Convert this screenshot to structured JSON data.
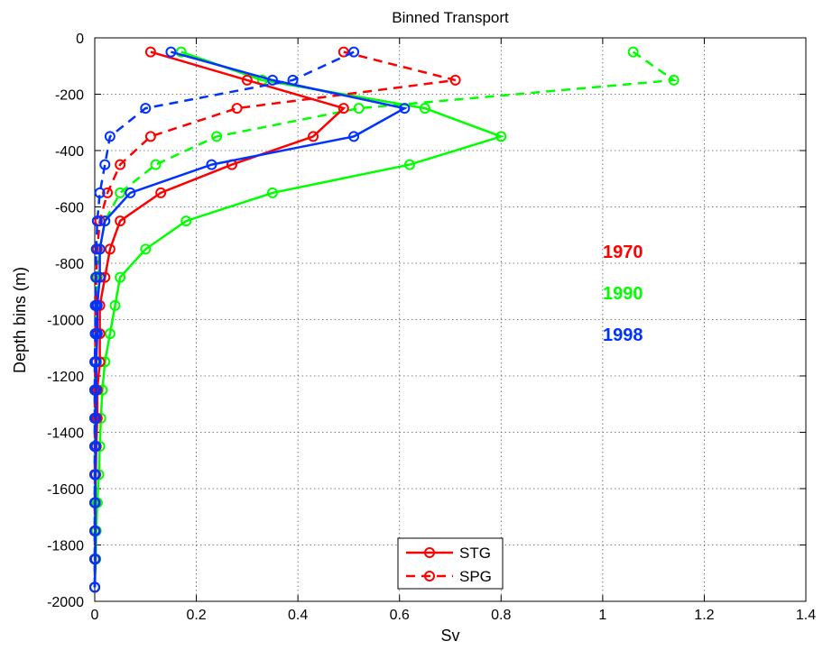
{
  "chart_data": {
    "type": "line",
    "title": "Binned Transport",
    "xlabel": "Sv",
    "ylabel": "Depth bins (m)",
    "xlim": [
      0,
      1.4
    ],
    "ylim": [
      -2000,
      0
    ],
    "xticks": [
      0,
      0.2,
      0.4,
      0.6,
      0.8,
      1,
      1.2,
      1.4
    ],
    "xtick_labels": [
      "0",
      "0.2",
      "0.4",
      "0.6",
      "0.8",
      "1",
      "1.2",
      "1.4"
    ],
    "yticks": [
      0,
      -200,
      -400,
      -600,
      -800,
      -1000,
      -1200,
      -1400,
      -1600,
      -1800,
      -2000
    ],
    "ytick_labels": [
      "0",
      "-200",
      "-400",
      "-600",
      "-800",
      "-1000",
      "-1200",
      "-1400",
      "-1600",
      "-1800",
      "-2000"
    ],
    "grid": true,
    "legend": {
      "placement": "bottom-center",
      "entries": [
        {
          "label": "STG",
          "style": "solid"
        },
        {
          "label": "SPG",
          "style": "dashed"
        }
      ]
    },
    "year_labels": [
      {
        "text": "1970",
        "color": "#ff0000"
      },
      {
        "text": "1990",
        "color": "#00ff00"
      },
      {
        "text": "1998",
        "color": "#0033ff"
      }
    ],
    "depth": [
      -50,
      -150,
      -250,
      -350,
      -450,
      -550,
      -650,
      -750,
      -850,
      -950,
      -1050,
      -1150,
      -1250,
      -1350,
      -1450,
      -1550,
      -1650,
      -1750,
      -1850,
      -1950
    ],
    "series": [
      {
        "year": "1970",
        "gyre": "STG",
        "style": "solid",
        "color": "#ff0000",
        "values": [
          0.11,
          0.3,
          0.49,
          0.43,
          0.27,
          0.13,
          0.05,
          0.03,
          0.02,
          0.01,
          0.01,
          0.01,
          0.005,
          0.005,
          0.003,
          0.002,
          0.001,
          0.001,
          0.001,
          0.0
        ]
      },
      {
        "year": "1970",
        "gyre": "SPG",
        "style": "dashed",
        "color": "#ff0000",
        "values": [
          0.49,
          0.71,
          0.28,
          0.11,
          0.05,
          0.025,
          0.01,
          0.005,
          0.003,
          0.002,
          0.001,
          0.001,
          0.0,
          0.0,
          0.0,
          0.0,
          0.0,
          0.0,
          0.0,
          0.0
        ]
      },
      {
        "year": "1990",
        "gyre": "STG",
        "style": "solid",
        "color": "#00ff00",
        "values": [
          0.17,
          0.33,
          0.65,
          0.8,
          0.62,
          0.35,
          0.18,
          0.1,
          0.05,
          0.04,
          0.03,
          0.02,
          0.015,
          0.012,
          0.01,
          0.008,
          0.005,
          0.003,
          0.002,
          0.0
        ]
      },
      {
        "year": "1990",
        "gyre": "SPG",
        "style": "dashed",
        "color": "#00ff00",
        "values": [
          1.06,
          1.14,
          0.52,
          0.24,
          0.12,
          0.05,
          0.02,
          0.01,
          0.005,
          0.003,
          0.002,
          0.001,
          0.0,
          0.0,
          0.0,
          0.0,
          0.0,
          0.0,
          0.0,
          0.0
        ]
      },
      {
        "year": "1998",
        "gyre": "STG",
        "style": "solid",
        "color": "#0033ff",
        "values": [
          0.15,
          0.35,
          0.61,
          0.51,
          0.23,
          0.07,
          0.02,
          0.01,
          0.01,
          0.005,
          0.005,
          0.003,
          0.003,
          0.002,
          0.002,
          0.001,
          0.001,
          0.001,
          0.001,
          0.0
        ]
      },
      {
        "year": "1998",
        "gyre": "SPG",
        "style": "dashed",
        "color": "#0033ff",
        "values": [
          0.51,
          0.39,
          0.1,
          0.03,
          0.02,
          0.01,
          0.005,
          0.003,
          0.002,
          0.001,
          0.001,
          0.0,
          0.0,
          0.0,
          0.0,
          0.0,
          0.0,
          0.0,
          0.0,
          0.0
        ]
      }
    ]
  }
}
